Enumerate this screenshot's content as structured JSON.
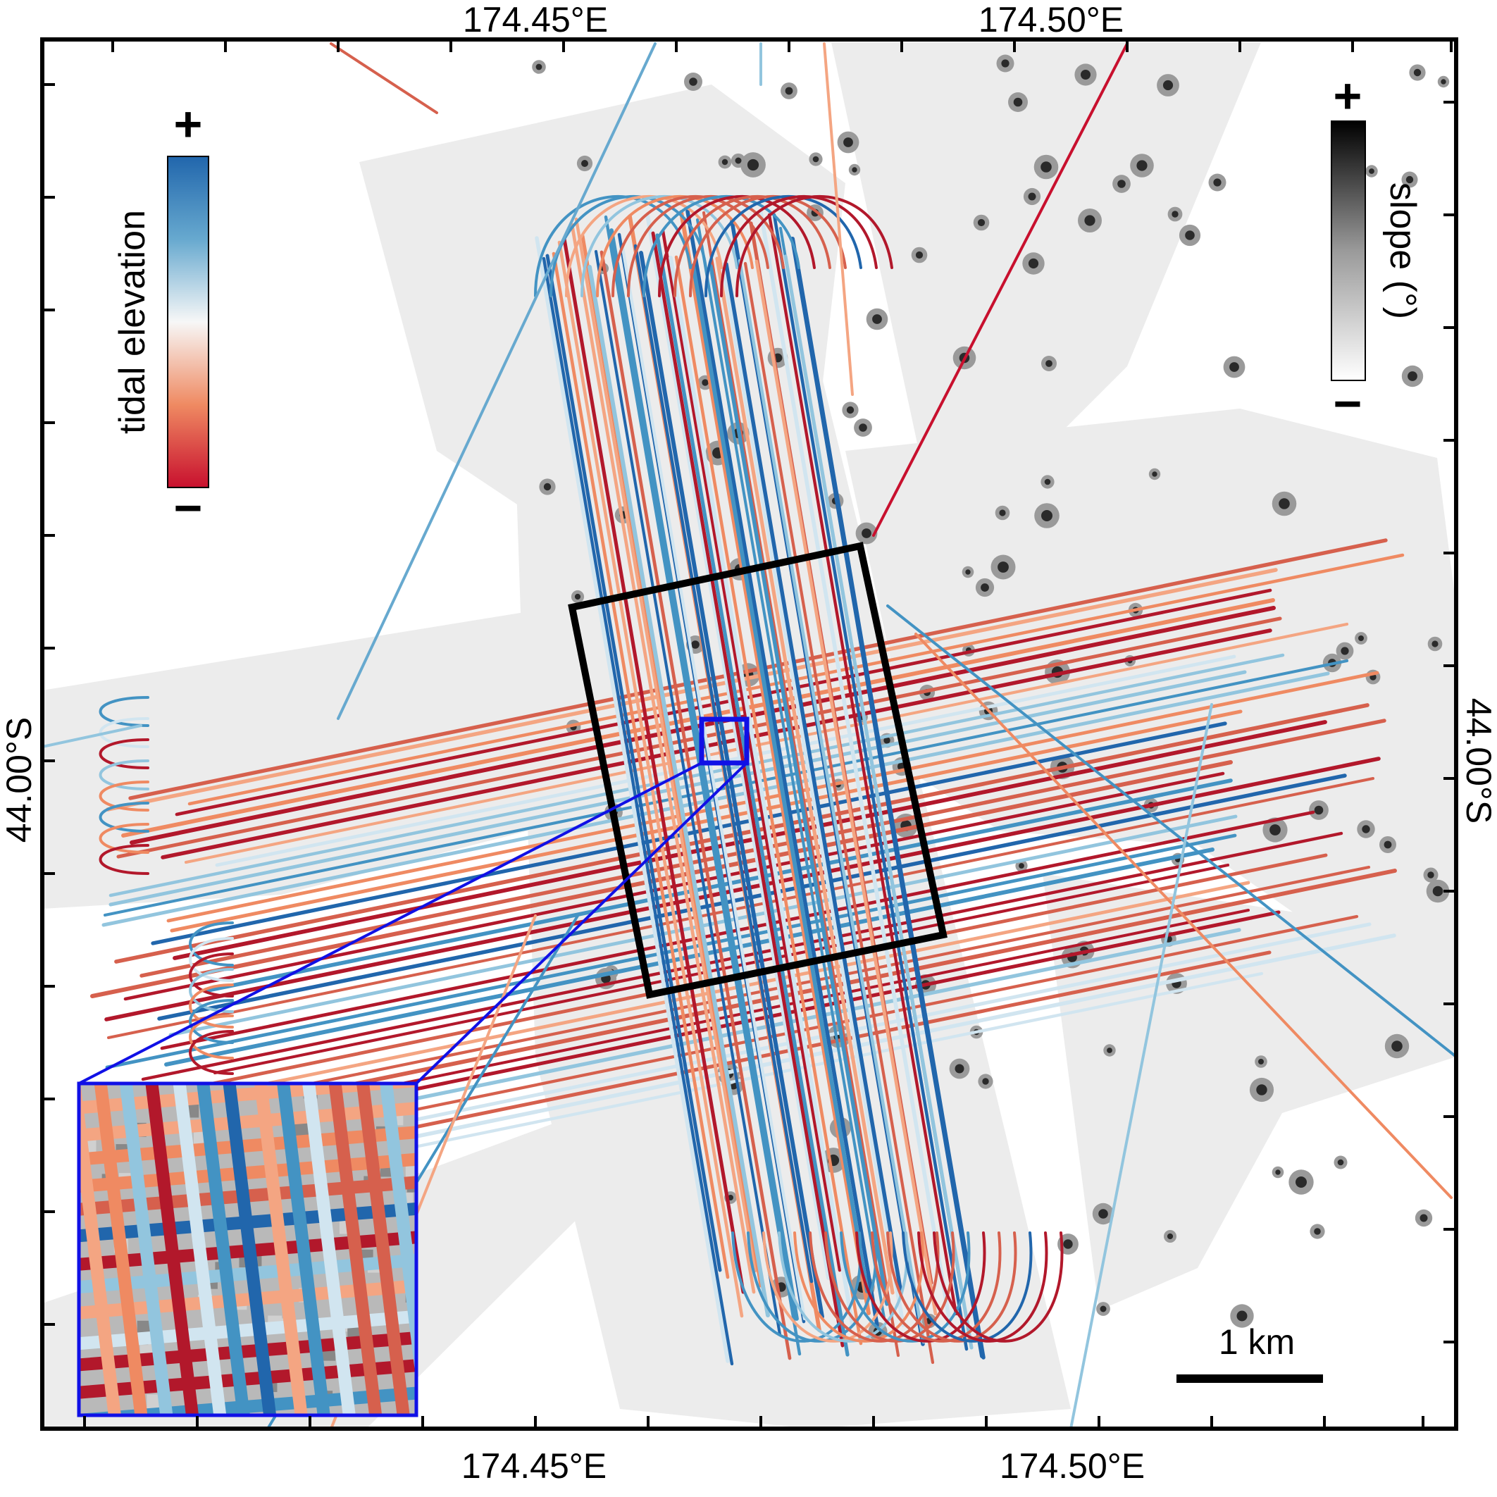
{
  "map": {
    "top_lon_labels": [
      "174.45°E",
      "174.50°E"
    ],
    "bottom_lon_labels": [
      "174.45°E",
      "174.50°E"
    ],
    "left_lat_label": "44.00°S",
    "right_lat_label": "44.00°S"
  },
  "legend_tidal": {
    "title": "tidal elevation",
    "plus": "+",
    "minus": "−",
    "colors": [
      "#2166ac",
      "#67a9cf",
      "#d1e5f0",
      "#f7f7f7",
      "#fddbc7",
      "#ef8a62",
      "#b2182b"
    ]
  },
  "legend_slope": {
    "title": "slope (°)",
    "plus": "+",
    "minus": "−",
    "colors": [
      "#000000",
      "#ffffff"
    ]
  },
  "scale_bar": {
    "label": "1 km"
  },
  "colors": {
    "frame": "#000000",
    "zoom_box": "#1010e6",
    "track_palette": [
      "#2166ac",
      "#4393c3",
      "#92c5de",
      "#d1e5f0",
      "#f4a582",
      "#d6604d",
      "#b2182b",
      "#ef8a62"
    ]
  }
}
